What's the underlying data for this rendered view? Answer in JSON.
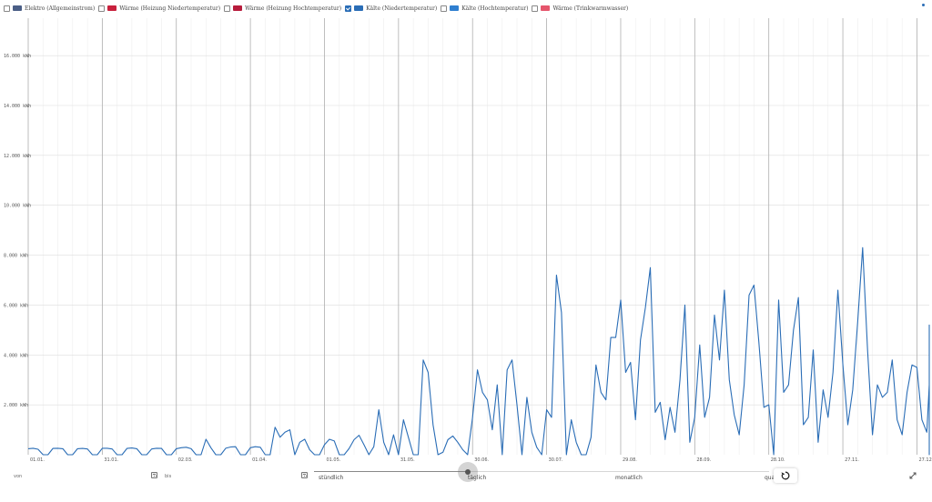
{
  "legend": [
    {
      "label": "Elektro (Allgemeinstrom)",
      "color": "#4a5e86",
      "checked": false
    },
    {
      "label": "Wärme (Heizung Niedertemperatur)",
      "color": "#c8213d",
      "checked": false
    },
    {
      "label": "Wärme (Heizung Hochtemperatur)",
      "color": "#b71c3c",
      "checked": false
    },
    {
      "label": "Kälte (Niedertemperatur)",
      "color": "#2a6db6",
      "checked": true
    },
    {
      "label": "Kälte (Hochtemperatur)",
      "color": "#2f7fd0",
      "checked": false
    },
    {
      "label": "Wärme (Trinkwarmwasser)",
      "color": "#e5566c",
      "checked": false
    }
  ],
  "controls": {
    "von_label": "von",
    "bis_label": "bis",
    "granularity_options": [
      "stündlich",
      "täglich",
      "monatlich",
      "quar"
    ],
    "granularity_selected": "täglich"
  },
  "chart_data": {
    "type": "line",
    "series": [
      {
        "name": "Kälte (Niedertemperatur)",
        "color": "#2a6db6",
        "step_days": 2,
        "values": [
          240,
          260,
          220,
          0,
          0,
          250,
          260,
          240,
          0,
          0,
          240,
          250,
          230,
          0,
          0,
          260,
          260,
          230,
          0,
          0,
          250,
          270,
          240,
          0,
          0,
          230,
          260,
          250,
          0,
          0,
          240,
          280,
          300,
          240,
          0,
          0,
          620,
          280,
          0,
          0,
          260,
          310,
          320,
          0,
          0,
          280,
          320,
          300,
          0,
          0,
          1100,
          700,
          900,
          1000,
          0,
          500,
          620,
          200,
          0,
          0,
          400,
          620,
          550,
          0,
          0,
          250,
          600,
          780,
          400,
          0,
          320,
          1800,
          500,
          0,
          800,
          0,
          1400,
          700,
          0,
          0,
          3800,
          3300,
          1200,
          0,
          100,
          600,
          750,
          500,
          200,
          0,
          1500,
          3400,
          2500,
          2200,
          1000,
          2800,
          0,
          3400,
          3800,
          2000,
          0,
          2300,
          900,
          300,
          0,
          1800,
          1500,
          7200,
          5700,
          0,
          1400,
          500,
          0,
          0,
          700,
          3600,
          2500,
          2200,
          4700,
          4700,
          6200,
          3300,
          3700,
          1400,
          4600,
          5900,
          7500,
          1700,
          2100,
          600,
          1900,
          900,
          3000,
          6000,
          500,
          1500,
          4400,
          1500,
          2300,
          5600,
          3800,
          6600,
          3000,
          1600,
          800,
          2800,
          6400,
          6800,
          4500,
          1900,
          2000,
          0,
          6200,
          2500,
          2800,
          5000,
          6300,
          1200,
          1500,
          4200,
          500,
          2600,
          1500,
          3300,
          6600,
          3600,
          1200,
          2600,
          5300,
          8300,
          4200,
          800,
          2800,
          2300,
          2500,
          3800,
          1400,
          800,
          2500,
          3600,
          3500,
          1400,
          900,
          2800,
          1700,
          1200,
          2900,
          700,
          1600,
          400,
          1200,
          1800,
          1300,
          700,
          1200,
          2800,
          3400,
          5100,
          5200,
          900,
          1200,
          2900,
          0,
          300,
          800,
          900,
          2200,
          600,
          200,
          300,
          0,
          400,
          300,
          0,
          1300,
          600,
          1700,
          300,
          200,
          300,
          0,
          0,
          400,
          500,
          400,
          0,
          200,
          250,
          300,
          0,
          0,
          300,
          200,
          0,
          1000,
          800,
          2400,
          0,
          0,
          250,
          300,
          0,
          0,
          260,
          300,
          0,
          0,
          220,
          320,
          250,
          0,
          0,
          300,
          250,
          260,
          0,
          0,
          280,
          250,
          0,
          0,
          260,
          300,
          0,
          0,
          250,
          300,
          0,
          0,
          250,
          300,
          0,
          0,
          280,
          290,
          0,
          0,
          250,
          300,
          260,
          0,
          0,
          280,
          250,
          0,
          0,
          250,
          280,
          0,
          0,
          280,
          300,
          0,
          0,
          260,
          290,
          0,
          0,
          250,
          300
        ]
      }
    ],
    "ylim": [
      0,
      17500
    ],
    "y_ticks": [
      2000,
      4000,
      6000,
      8000,
      10000,
      12000,
      14000,
      16000
    ],
    "y_tick_labels": [
      "2.000 kWh",
      "4.000 kWh",
      "6.000 kWh",
      "8.000 kWh",
      "10.000 kWh",
      "12.000 kWh",
      "14.000 kWh",
      "16.000 kWh"
    ],
    "x_domain_days": [
      0,
      365
    ],
    "x_tick_days": [
      0,
      30,
      60,
      90,
      120,
      150,
      180,
      210,
      240,
      270,
      300,
      330,
      360
    ],
    "x_tick_labels": [
      "01.01.",
      "31.01.",
      "02.03.",
      "01.04.",
      "01.05.",
      "31.05.",
      "30.06.",
      "30.07.",
      "29.08.",
      "28.09.",
      "28.10.",
      "27.11.",
      "27.12."
    ],
    "grid": true
  }
}
